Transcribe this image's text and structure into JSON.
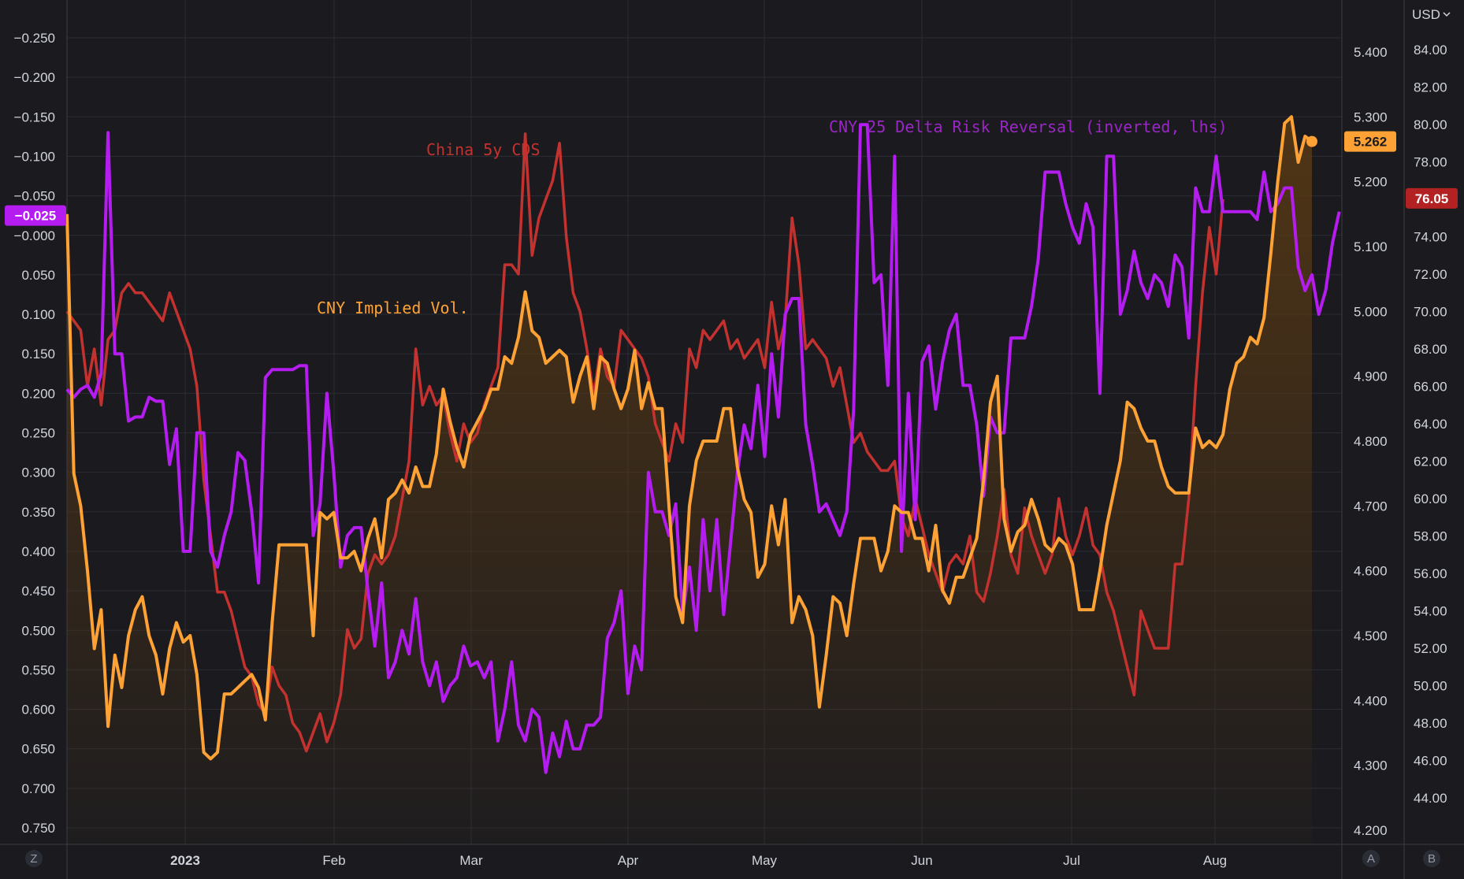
{
  "currency_menu": {
    "label": "USD",
    "icon": "chevron-down-icon"
  },
  "corner_buttons": {
    "left": "Z",
    "right_a": "A",
    "right_b": "B"
  },
  "colors": {
    "background": "#1b1b1f",
    "grid": "#2a2d35",
    "risk_reversal": "#b51cf0",
    "cds": "#c4322f",
    "implied_vol": "#ffa235",
    "implied_vol_fill": "#5a3a14",
    "axis_text": "#d1d4dc"
  },
  "chart_data": {
    "type": "line",
    "series": [
      {
        "name": "CNY 25 Delta Risk Reversal (inverted, lhs)",
        "axis": "left-inverted",
        "last_value_badge": "−0.025",
        "values": [
          0.195,
          0.205,
          0.195,
          0.19,
          0.205,
          0.175,
          -0.13,
          0.15,
          0.15,
          0.235,
          0.23,
          0.23,
          0.205,
          0.21,
          0.21,
          0.29,
          0.245,
          0.4,
          0.4,
          0.25,
          0.25,
          0.4,
          0.42,
          0.38,
          0.35,
          0.275,
          0.285,
          0.35,
          0.44,
          0.18,
          0.17,
          0.17,
          0.17,
          0.17,
          0.165,
          0.165,
          0.38,
          0.34,
          0.2,
          0.3,
          0.42,
          0.38,
          0.37,
          0.37,
          0.45,
          0.52,
          0.44,
          0.56,
          0.54,
          0.5,
          0.53,
          0.46,
          0.54,
          0.57,
          0.54,
          0.59,
          0.57,
          0.56,
          0.52,
          0.545,
          0.54,
          0.56,
          0.54,
          0.64,
          0.6,
          0.54,
          0.62,
          0.64,
          0.6,
          0.61,
          0.68,
          0.63,
          0.66,
          0.615,
          0.65,
          0.65,
          0.62,
          0.62,
          0.61,
          0.51,
          0.49,
          0.45,
          0.58,
          0.52,
          0.55,
          0.3,
          0.35,
          0.35,
          0.38,
          0.34,
          0.48,
          0.42,
          0.5,
          0.36,
          0.45,
          0.36,
          0.48,
          0.39,
          0.3,
          0.24,
          0.27,
          0.19,
          0.28,
          0.15,
          0.23,
          0.1,
          0.08,
          0.08,
          0.24,
          0.29,
          0.35,
          0.34,
          0.36,
          0.38,
          0.35,
          0.22,
          -0.14,
          -0.14,
          0.06,
          0.05,
          0.19,
          -0.1,
          0.4,
          0.2,
          0.36,
          0.16,
          0.14,
          0.22,
          0.16,
          0.12,
          0.1,
          0.19,
          0.19,
          0.24,
          0.33,
          0.23,
          0.25,
          0.25,
          0.13,
          0.13,
          0.13,
          0.09,
          0.03,
          -0.08,
          -0.08,
          -0.08,
          -0.04,
          -0.01,
          0.01,
          -0.04,
          -0.01,
          0.2,
          -0.1,
          -0.1,
          0.1,
          0.07,
          0.02,
          0.06,
          0.08,
          0.05,
          0.06,
          0.09,
          0.025,
          0.04,
          0.13,
          -0.06,
          -0.03,
          -0.03,
          -0.1,
          -0.03,
          -0.03,
          -0.03,
          -0.03,
          -0.03,
          -0.02,
          -0.08,
          -0.03,
          -0.04,
          -0.06,
          -0.06,
          0.04,
          0.07,
          0.05,
          0.1,
          0.07,
          0.01,
          -0.03
        ]
      },
      {
        "name": "China 5y CDS",
        "axis": "right-outer",
        "last_value_badge": "76.05",
        "values": [
          70.0,
          69.5,
          69.0,
          66.0,
          68.0,
          65.0,
          68.5,
          69.0,
          71.0,
          71.5,
          71.0,
          71.0,
          70.5,
          70.0,
          69.5,
          71.0,
          70.0,
          69.0,
          68.0,
          66.0,
          61.0,
          58.0,
          55.0,
          55.0,
          54.0,
          52.5,
          51.0,
          50.5,
          49.0,
          48.5,
          51.0,
          50.0,
          49.5,
          48.0,
          47.5,
          46.5,
          47.5,
          48.5,
          47.0,
          48.0,
          49.5,
          53.0,
          52.0,
          52.5,
          56.0,
          57.0,
          56.5,
          57.0,
          58.0,
          60.0,
          62.0,
          68.0,
          65.0,
          66.0,
          65.0,
          65.5,
          63.5,
          62.0,
          64.0,
          63.0,
          63.5,
          65.0,
          66.0,
          67.0,
          72.5,
          72.5,
          72.0,
          79.5,
          73.0,
          75.0,
          76.0,
          77.0,
          79.0,
          74.0,
          71.0,
          70.0,
          68.0,
          65.5,
          68.0,
          66.5,
          66.0,
          69.0,
          68.5,
          68.0,
          67.5,
          66.5,
          64.0,
          63.0,
          62.0,
          64.0,
          63.0,
          68.0,
          67.0,
          69.0,
          68.5,
          69.0,
          69.5,
          68.0,
          68.5,
          67.5,
          68.0,
          68.5,
          67.0,
          70.5,
          68.0,
          69.5,
          75.0,
          72.5,
          68.0,
          68.5,
          68.0,
          67.5,
          66.0,
          67.0,
          65.0,
          63.0,
          63.5,
          62.5,
          62.0,
          61.5,
          61.5,
          62.0,
          59.0,
          58.0,
          60.0,
          58.5,
          57.0,
          56.0,
          55.0,
          56.5,
          57.0,
          56.5,
          58.0,
          55.0,
          54.5,
          56.0,
          58.0,
          60.5,
          57.0,
          56.0,
          59.5,
          58.0,
          57.0,
          56.0,
          57.0,
          60.0,
          58.0,
          57.0,
          58.0,
          59.5,
          57.5,
          57.0,
          55.0,
          54.0,
          52.5,
          51.0,
          49.5,
          54.0,
          53.0,
          52.0,
          52.0,
          52.0,
          56.5,
          56.5,
          60.0,
          66.0,
          71.0,
          74.5,
          72.0,
          76.0
        ]
      },
      {
        "name": "CNY Implied Vol.",
        "axis": "right-inner",
        "last_value_badge": "5.262",
        "values": [
          5.15,
          4.75,
          4.7,
          4.6,
          4.48,
          4.54,
          4.36,
          4.47,
          4.42,
          4.5,
          4.54,
          4.56,
          4.5,
          4.47,
          4.41,
          4.48,
          4.52,
          4.49,
          4.5,
          4.44,
          4.32,
          4.31,
          4.32,
          4.41,
          4.41,
          4.42,
          4.43,
          4.44,
          4.42,
          4.37,
          4.52,
          4.64,
          4.64,
          4.64,
          4.64,
          4.64,
          4.5,
          4.69,
          4.68,
          4.69,
          4.62,
          4.62,
          4.63,
          4.6,
          4.65,
          4.68,
          4.62,
          4.71,
          4.72,
          4.74,
          4.72,
          4.76,
          4.73,
          4.73,
          4.78,
          4.88,
          4.83,
          4.79,
          4.76,
          4.81,
          4.83,
          4.85,
          4.88,
          4.88,
          4.93,
          4.92,
          4.96,
          5.03,
          4.97,
          4.96,
          4.92,
          4.93,
          4.94,
          4.93,
          4.86,
          4.9,
          4.93,
          4.85,
          4.93,
          4.92,
          4.88,
          4.85,
          4.88,
          4.94,
          4.85,
          4.89,
          4.85,
          4.85,
          4.7,
          4.56,
          4.52,
          4.7,
          4.77,
          4.8,
          4.8,
          4.8,
          4.85,
          4.85,
          4.76,
          4.71,
          4.69,
          4.59,
          4.61,
          4.7,
          4.64,
          4.71,
          4.52,
          4.56,
          4.54,
          4.5,
          4.39,
          4.47,
          4.56,
          4.55,
          4.5,
          4.58,
          4.65,
          4.65,
          4.65,
          4.6,
          4.63,
          4.7,
          4.69,
          4.69,
          4.65,
          4.65,
          4.6,
          4.67,
          4.57,
          4.55,
          4.59,
          4.59,
          4.62,
          4.65,
          4.74,
          4.86,
          4.9,
          4.68,
          4.63,
          4.66,
          4.67,
          4.71,
          4.68,
          4.64,
          4.63,
          4.65,
          4.64,
          4.61,
          4.54,
          4.54,
          4.54,
          4.6,
          4.67,
          4.72,
          4.77,
          4.86,
          4.85,
          4.82,
          4.8,
          4.8,
          4.76,
          4.73,
          4.72,
          4.72,
          4.72,
          4.82,
          4.79,
          4.8,
          4.79,
          4.81,
          4.88,
          4.92,
          4.93,
          4.96,
          4.95,
          4.99,
          5.09,
          5.2,
          5.29,
          5.3,
          5.23,
          5.27,
          5.262
        ]
      }
    ],
    "x_tick_labels": [
      "2023",
      "Feb",
      "Mar",
      "Apr",
      "May",
      "Jun",
      "Jul",
      "Aug"
    ],
    "left_axis": {
      "inverted": true,
      "ylim": [
        -0.27,
        0.765
      ],
      "ticks": [
        -0.25,
        -0.2,
        -0.15,
        -0.1,
        -0.05,
        0,
        0.05,
        0.1,
        0.15,
        0.2,
        0.25,
        0.3,
        0.35,
        0.4,
        0.45,
        0.5,
        0.55,
        0.6,
        0.65,
        0.7,
        0.75
      ],
      "tick_labels": [
        "−0.250",
        "−0.200",
        "−0.150",
        "−0.100",
        "−0.050",
        "−0.000",
        "0.050",
        "0.100",
        "0.150",
        "0.200",
        "0.250",
        "0.300",
        "0.350",
        "0.400",
        "0.450",
        "0.500",
        "0.550",
        "0.600",
        "0.650",
        "0.700",
        "0.750"
      ]
    },
    "right_inner_axis": {
      "ylim": [
        4.18,
        5.44
      ],
      "tick_labels": [
        "5.400",
        "5.300",
        "5.200",
        "5.100",
        "5.000",
        "4.900",
        "4.800",
        "4.700",
        "4.600",
        "4.500",
        "4.400",
        "4.300",
        "4.200"
      ],
      "ticks": [
        5.4,
        5.3,
        5.2,
        5.1,
        5.0,
        4.9,
        4.8,
        4.7,
        4.6,
        4.5,
        4.4,
        4.3,
        4.2
      ]
    },
    "right_outer_axis": {
      "ylim": [
        42.0,
        86.0
      ],
      "tick_labels": [
        "84.00",
        "82.00",
        "80.00",
        "78.00",
        "76.00",
        "74.00",
        "72.00",
        "70.00",
        "68.00",
        "66.00",
        "64.00",
        "62.00",
        "60.00",
        "58.00",
        "56.00",
        "54.00",
        "52.00",
        "50.00",
        "48.00",
        "46.00",
        "44.00"
      ],
      "ticks": [
        84,
        82,
        80,
        78,
        76,
        74,
        72,
        70,
        68,
        66,
        64,
        62,
        60,
        58,
        56,
        54,
        52,
        50,
        48,
        46,
        44
      ]
    },
    "grid": true
  }
}
